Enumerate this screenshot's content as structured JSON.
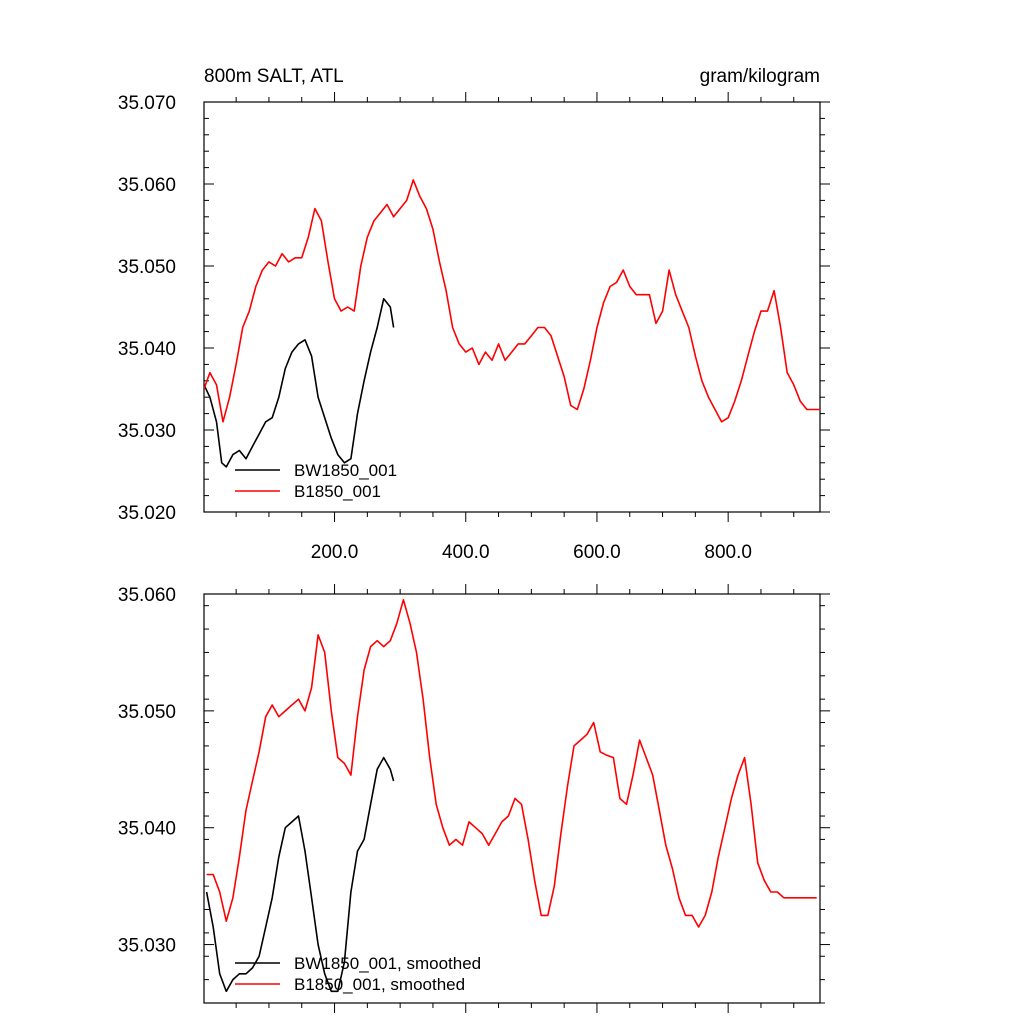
{
  "figure": {
    "title_left": "800m SALT, ATL",
    "title_right": "gram/kilogram"
  },
  "colors": {
    "series_a": "#000000",
    "series_b": "#ff0000",
    "frame": "#000000",
    "background": "#ffffff"
  },
  "chart_data": [
    {
      "type": "line",
      "title": "800m SALT, ATL",
      "units": "gram/kilogram",
      "xlim": [
        1,
        940
      ],
      "ylim": [
        35.02,
        35.07
      ],
      "x_ticks": [
        200,
        400,
        600,
        800
      ],
      "x_tick_labels": [
        "200.0",
        "400.0",
        "600.0",
        "800.0"
      ],
      "y_ticks": [
        35.02,
        35.03,
        35.04,
        35.05,
        35.06,
        35.07
      ],
      "y_tick_labels": [
        "35.020",
        "35.030",
        "35.040",
        "35.050",
        "35.060",
        "35.070"
      ],
      "legend_position": "bottom-left",
      "series": [
        {
          "name": "BW1850_001",
          "color": "#000000",
          "x": [
            1,
            10,
            20,
            28,
            35,
            45,
            55,
            65,
            75,
            85,
            95,
            105,
            115,
            125,
            135,
            145,
            155,
            165,
            175,
            185,
            195,
            205,
            215,
            225,
            235,
            245,
            255,
            265,
            275,
            285,
            290
          ],
          "y": [
            35.0355,
            35.034,
            35.031,
            35.026,
            35.0255,
            35.027,
            35.0275,
            35.0265,
            35.028,
            35.0295,
            35.031,
            35.0315,
            35.034,
            35.0375,
            35.0395,
            35.0405,
            35.041,
            35.039,
            35.034,
            35.0315,
            35.029,
            35.027,
            35.026,
            35.0265,
            35.032,
            35.036,
            35.0395,
            35.0425,
            35.046,
            35.045,
            35.0425
          ]
        },
        {
          "name": "B1850_001",
          "color": "#ff0000",
          "x": [
            1,
            10,
            20,
            30,
            40,
            50,
            60,
            70,
            80,
            90,
            100,
            110,
            120,
            130,
            140,
            150,
            160,
            170,
            180,
            190,
            200,
            210,
            220,
            230,
            240,
            250,
            260,
            270,
            280,
            290,
            300,
            310,
            320,
            330,
            340,
            350,
            360,
            370,
            380,
            390,
            400,
            410,
            420,
            430,
            440,
            450,
            460,
            470,
            480,
            490,
            500,
            510,
            520,
            530,
            540,
            550,
            560,
            570,
            580,
            590,
            600,
            610,
            620,
            630,
            640,
            650,
            660,
            670,
            680,
            690,
            700,
            710,
            720,
            730,
            740,
            750,
            760,
            770,
            780,
            790,
            800,
            810,
            820,
            830,
            840,
            850,
            860,
            870,
            880,
            890,
            900,
            910,
            920,
            930,
            940
          ],
          "y": [
            35.035,
            35.037,
            35.0355,
            35.031,
            35.034,
            35.038,
            35.0425,
            35.0445,
            35.0475,
            35.0495,
            35.0505,
            35.05,
            35.0515,
            35.0505,
            35.051,
            35.051,
            35.0535,
            35.057,
            35.0555,
            35.0505,
            35.046,
            35.0445,
            35.045,
            35.0445,
            35.05,
            35.0535,
            35.0555,
            35.0565,
            35.0575,
            35.056,
            35.057,
            35.058,
            35.0605,
            35.0585,
            35.057,
            35.0545,
            35.0505,
            35.047,
            35.0425,
            35.0405,
            35.0395,
            35.04,
            35.038,
            35.0395,
            35.0385,
            35.0405,
            35.0385,
            35.0395,
            35.0405,
            35.0405,
            35.0415,
            35.0425,
            35.0425,
            35.0415,
            35.039,
            35.0365,
            35.033,
            35.0325,
            35.035,
            35.0385,
            35.0425,
            35.0455,
            35.0475,
            35.048,
            35.0495,
            35.0475,
            35.0465,
            35.0465,
            35.0465,
            35.043,
            35.0445,
            35.0495,
            35.0465,
            35.0445,
            35.0425,
            35.039,
            35.036,
            35.034,
            35.0325,
            35.031,
            35.0315,
            35.0335,
            35.036,
            35.039,
            35.042,
            35.0445,
            35.0445,
            35.047,
            35.0425,
            35.037,
            35.0355,
            35.0335,
            35.0325,
            35.0325,
            35.0325
          ]
        }
      ]
    },
    {
      "type": "line",
      "xlim": [
        1,
        940
      ],
      "ylim": [
        35.025,
        35.06
      ],
      "x_ticks": [
        200,
        400,
        600,
        800
      ],
      "x_tick_labels": [],
      "y_ticks": [
        35.03,
        35.04,
        35.05,
        35.06
      ],
      "y_tick_labels": [
        "35.030",
        "35.040",
        "35.050",
        "35.060"
      ],
      "legend_position": "bottom-left",
      "series": [
        {
          "name": "BW1850_001, smoothed",
          "color": "#000000",
          "x": [
            5,
            15,
            25,
            35,
            45,
            55,
            65,
            75,
            85,
            95,
            105,
            115,
            125,
            135,
            145,
            155,
            165,
            175,
            185,
            195,
            205,
            215,
            225,
            235,
            245,
            255,
            265,
            275,
            285,
            290
          ],
          "y": [
            35.0345,
            35.0315,
            35.0275,
            35.026,
            35.027,
            35.0275,
            35.0275,
            35.028,
            35.029,
            35.0315,
            35.034,
            35.0375,
            35.04,
            35.0405,
            35.041,
            35.038,
            35.034,
            35.03,
            35.0275,
            35.026,
            35.026,
            35.0285,
            35.0345,
            35.038,
            35.039,
            35.042,
            35.045,
            35.046,
            35.045,
            35.044
          ]
        },
        {
          "name": "B1850_001, smoothed",
          "color": "#ff0000",
          "x": [
            5,
            15,
            25,
            35,
            45,
            55,
            65,
            75,
            85,
            95,
            105,
            115,
            125,
            135,
            145,
            155,
            165,
            175,
            185,
            195,
            205,
            215,
            225,
            235,
            245,
            255,
            265,
            275,
            285,
            295,
            305,
            315,
            325,
            335,
            345,
            355,
            365,
            375,
            385,
            395,
            405,
            415,
            425,
            435,
            445,
            455,
            465,
            475,
            485,
            495,
            505,
            515,
            525,
            535,
            545,
            555,
            565,
            575,
            585,
            595,
            605,
            615,
            625,
            635,
            645,
            655,
            665,
            675,
            685,
            695,
            705,
            715,
            725,
            735,
            745,
            755,
            765,
            775,
            785,
            795,
            805,
            815,
            825,
            835,
            845,
            855,
            865,
            875,
            885,
            895,
            905,
            915,
            925,
            935
          ],
          "y": [
            35.036,
            35.036,
            35.0345,
            35.032,
            35.034,
            35.0375,
            35.0415,
            35.044,
            35.0465,
            35.0495,
            35.0505,
            35.0495,
            35.05,
            35.0505,
            35.051,
            35.05,
            35.052,
            35.0565,
            35.055,
            35.05,
            35.046,
            35.0455,
            35.0445,
            35.0495,
            35.0535,
            35.0555,
            35.056,
            35.0555,
            35.056,
            35.0575,
            35.0595,
            35.0575,
            35.055,
            35.051,
            35.046,
            35.042,
            35.04,
            35.0385,
            35.039,
            35.0385,
            35.0405,
            35.04,
            35.0395,
            35.0385,
            35.0395,
            35.0405,
            35.041,
            35.0425,
            35.042,
            35.039,
            35.0355,
            35.0325,
            35.0325,
            35.035,
            35.0395,
            35.0435,
            35.047,
            35.0475,
            35.048,
            35.049,
            35.0465,
            35.0462,
            35.046,
            35.0425,
            35.042,
            35.0445,
            35.0475,
            35.046,
            35.0445,
            35.0415,
            35.0385,
            35.0365,
            35.034,
            35.0325,
            35.0325,
            35.0315,
            35.0325,
            35.0345,
            35.0375,
            35.04,
            35.0425,
            35.0445,
            35.046,
            35.042,
            35.037,
            35.0355,
            35.0345,
            35.0345,
            35.034,
            35.034,
            35.034,
            35.034,
            35.034,
            35.034
          ]
        }
      ]
    }
  ]
}
